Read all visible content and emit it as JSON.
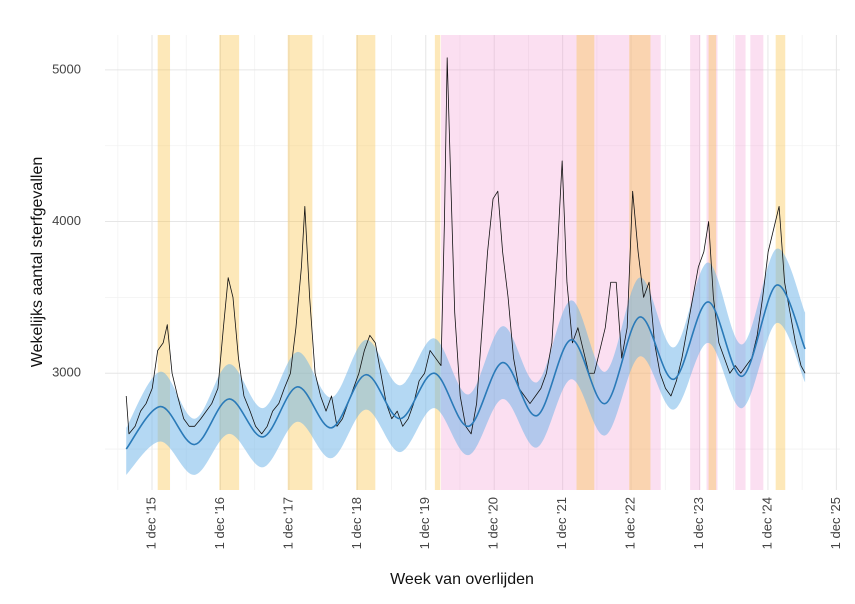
{
  "chart_data": {
    "type": "line",
    "x_label": "Week van overlijden",
    "y_label": "Wekelijks aantal sterfgevallen",
    "xlim": [
      2015.23,
      2025.97
    ],
    "ylim": [
      2230,
      5230
    ],
    "xticks": [
      {
        "value": 2015.917,
        "label": "1 dec '15"
      },
      {
        "value": 2016.917,
        "label": "1 dec '16"
      },
      {
        "value": 2017.917,
        "label": "1 dec '17"
      },
      {
        "value": 2018.917,
        "label": "1 dec '18"
      },
      {
        "value": 2019.917,
        "label": "1 dec '19"
      },
      {
        "value": 2020.917,
        "label": "1 dec '20"
      },
      {
        "value": 2021.917,
        "label": "1 dec '21"
      },
      {
        "value": 2022.917,
        "label": "1 dec '22"
      },
      {
        "value": 2023.917,
        "label": "1 dec '23"
      },
      {
        "value": 2024.917,
        "label": "1 dec '24"
      },
      {
        "value": 2025.917,
        "label": "1 dec '25"
      }
    ],
    "xticks_minor": [
      2015.417,
      2016.417,
      2017.417,
      2018.417,
      2019.417,
      2020.417,
      2021.417,
      2022.417,
      2023.417,
      2024.417,
      2025.417
    ],
    "yticks": [
      3000,
      4000,
      5000
    ],
    "yticks_minor": [
      2500,
      3500,
      4500
    ],
    "grid": true,
    "color": "#111111",
    "x": [
      2015.54,
      2015.58,
      2015.67,
      2015.75,
      2015.83,
      2015.92,
      2016.0,
      2016.08,
      2016.14,
      2016.21,
      2016.29,
      2016.38,
      2016.46,
      2016.54,
      2016.63,
      2016.71,
      2016.79,
      2016.88,
      2016.96,
      2017.03,
      2017.1,
      2017.18,
      2017.26,
      2017.35,
      2017.43,
      2017.52,
      2017.6,
      2017.68,
      2017.77,
      2017.85,
      2017.94,
      2018.02,
      2018.1,
      2018.15,
      2018.22,
      2018.3,
      2018.38,
      2018.46,
      2018.54,
      2018.62,
      2018.7,
      2018.78,
      2018.86,
      2018.94,
      2019.02,
      2019.1,
      2019.18,
      2019.26,
      2019.34,
      2019.42,
      2019.5,
      2019.58,
      2019.66,
      2019.74,
      2019.82,
      2019.9,
      2019.98,
      2020.06,
      2020.14,
      2020.19,
      2020.23,
      2020.28,
      2020.34,
      2020.42,
      2020.5,
      2020.58,
      2020.66,
      2020.74,
      2020.82,
      2020.9,
      2020.97,
      2021.04,
      2021.12,
      2021.2,
      2021.28,
      2021.36,
      2021.44,
      2021.52,
      2021.6,
      2021.68,
      2021.76,
      2021.84,
      2021.91,
      2021.98,
      2022.06,
      2022.14,
      2022.22,
      2022.3,
      2022.38,
      2022.46,
      2022.54,
      2022.62,
      2022.7,
      2022.78,
      2022.86,
      2022.94,
      2023.02,
      2023.1,
      2023.18,
      2023.26,
      2023.34,
      2023.42,
      2023.5,
      2023.58,
      2023.66,
      2023.74,
      2023.82,
      2023.9,
      2023.98,
      2024.05,
      2024.12,
      2024.2,
      2024.28,
      2024.36,
      2024.44,
      2024.52,
      2024.6,
      2024.68,
      2024.76,
      2024.84,
      2024.92,
      2025.0,
      2025.08,
      2025.16,
      2025.24,
      2025.32,
      2025.4,
      2025.46
    ],
    "values": [
      2850,
      2600,
      2650,
      2750,
      2800,
      2900,
      3150,
      3200,
      3320,
      3000,
      2850,
      2700,
      2650,
      2650,
      2700,
      2750,
      2800,
      2900,
      3300,
      3630,
      3500,
      3100,
      2850,
      2750,
      2650,
      2600,
      2650,
      2750,
      2800,
      2900,
      3000,
      3300,
      3700,
      4100,
      3500,
      3000,
      2850,
      2750,
      2850,
      2650,
      2700,
      2800,
      2900,
      3000,
      3150,
      3250,
      3200,
      3000,
      2800,
      2700,
      2750,
      2650,
      2700,
      2800,
      2950,
      3000,
      3150,
      3100,
      3050,
      4000,
      5080,
      4300,
      3400,
      2850,
      2650,
      2600,
      2800,
      3300,
      3800,
      4150,
      4200,
      3800,
      3500,
      3100,
      2900,
      2850,
      2800,
      2850,
      2900,
      3000,
      3200,
      3800,
      4400,
      3600,
      3200,
      3300,
      3150,
      3000,
      3000,
      3150,
      3300,
      3600,
      3600,
      3100,
      3300,
      4200,
      3800,
      3500,
      3600,
      3200,
      3000,
      2900,
      2850,
      2950,
      3100,
      3300,
      3500,
      3700,
      3800,
      4000,
      3500,
      3200,
      3100,
      3000,
      3050,
      3000,
      3050,
      3100,
      3250,
      3500,
      3800,
      3950,
      4100,
      3600,
      3400,
      3200,
      3050,
      3000
    ],
    "baseline": {
      "color": "#2a7ab8",
      "band_color": "#6ab2e7",
      "x": [
        2015.54,
        2016.04,
        2016.54,
        2017.04,
        2017.54,
        2018.04,
        2018.54,
        2019.04,
        2019.54,
        2020.04,
        2020.54,
        2021.04,
        2021.54,
        2022.04,
        2022.54,
        2023.04,
        2023.54,
        2024.04,
        2024.54,
        2025.04,
        2025.46
      ],
      "values": [
        2500,
        2780,
        2530,
        2830,
        2580,
        2910,
        2640,
        2990,
        2700,
        3000,
        2650,
        3070,
        2720,
        3220,
        2800,
        3370,
        2960,
        3470,
        2980,
        3580,
        3160
      ],
      "lower": [
        2330,
        2550,
        2330,
        2600,
        2380,
        2680,
        2440,
        2760,
        2480,
        2770,
        2460,
        2830,
        2510,
        2960,
        2590,
        3110,
        2760,
        3200,
        2770,
        3330,
        2940
      ],
      "upper": [
        2640,
        3010,
        2700,
        3060,
        2770,
        3140,
        2840,
        3220,
        2920,
        3230,
        2860,
        3310,
        2940,
        3480,
        3010,
        3630,
        3170,
        3730,
        3190,
        3820,
        3400
      ]
    },
    "periods": [
      {
        "color": "rgba(240,140,205,0.28)",
        "ranges": [
          [
            2020.14,
            2023.35
          ],
          [
            2023.78,
            2023.93
          ],
          [
            2024.02,
            2024.18
          ],
          [
            2024.44,
            2024.59
          ],
          [
            2024.66,
            2024.85
          ]
        ]
      },
      {
        "color": "rgba(250,195,70,0.38)",
        "ranges": [
          [
            2016.0,
            2016.18
          ],
          [
            2016.9,
            2017.19
          ],
          [
            2017.9,
            2018.26
          ],
          [
            2018.9,
            2019.18
          ],
          [
            2020.05,
            2020.13
          ],
          [
            2022.12,
            2022.38
          ],
          [
            2022.89,
            2023.2
          ],
          [
            2024.05,
            2024.16
          ],
          [
            2025.03,
            2025.17
          ]
        ]
      }
    ]
  }
}
